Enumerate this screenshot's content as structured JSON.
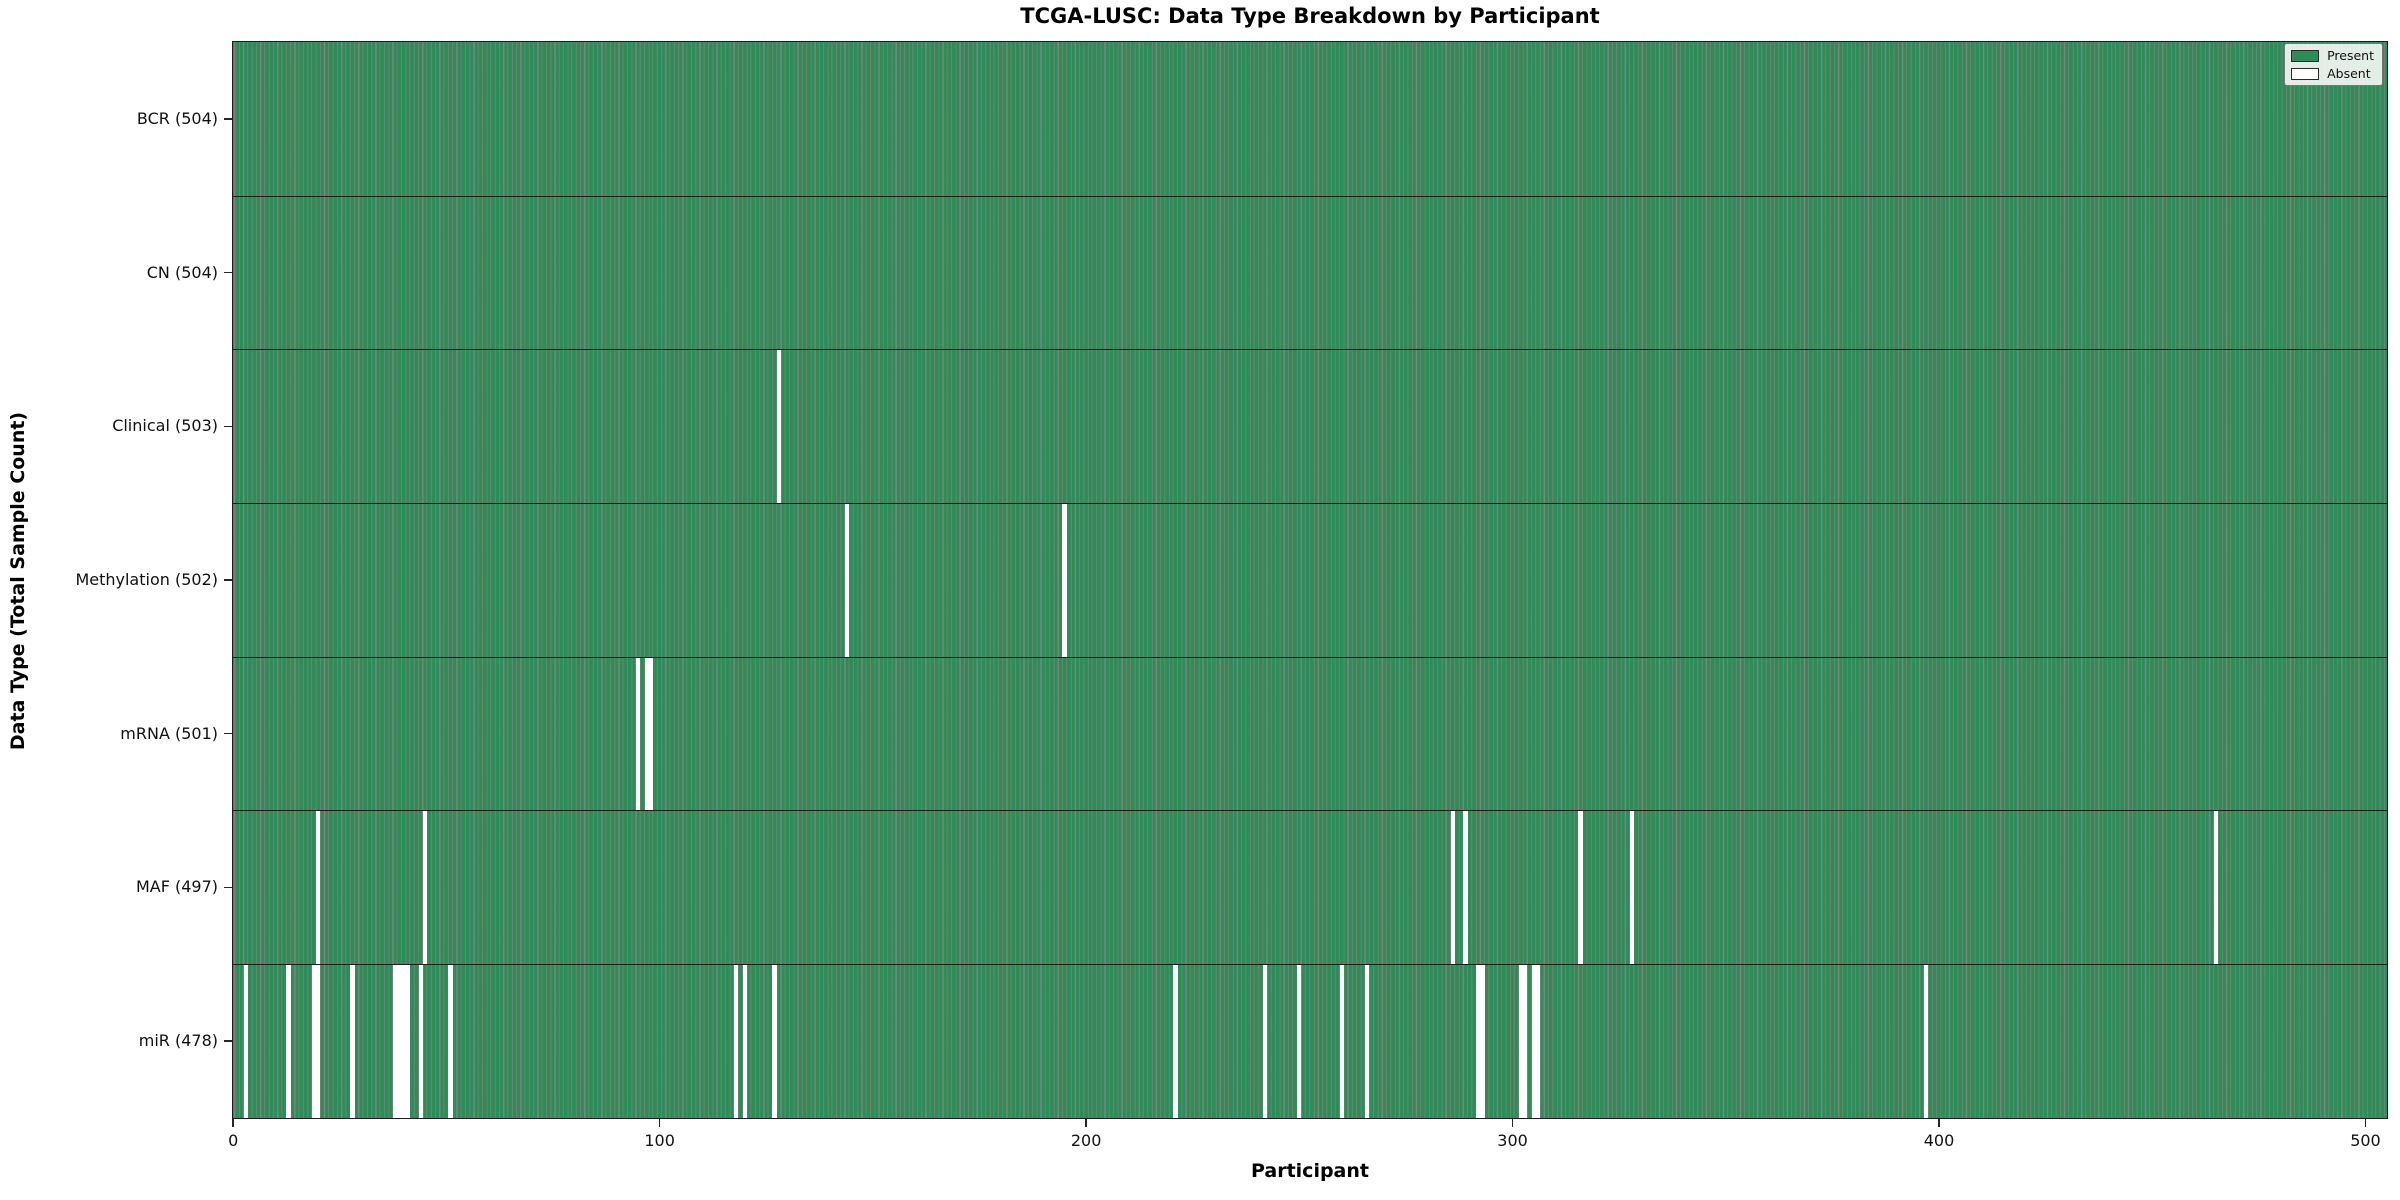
{
  "chart_data": {
    "type": "heatmap",
    "title": "TCGA-LUSC: Data Type Breakdown by Participant",
    "xlabel": "Participant",
    "ylabel": "Data Type (Total Sample Count)",
    "x_ticks": [
      0,
      100,
      200,
      300,
      400,
      500
    ],
    "xlim": [
      0,
      505
    ],
    "n_participants": 504,
    "grid": false,
    "legend_position": "upper right",
    "colors": {
      "present": "#2f8b58",
      "absent": "#ffffff",
      "bar_edge": "#0c3a20",
      "spine": "#1c1c1c"
    },
    "rows": [
      {
        "label": "BCR (504)",
        "data_type": "BCR",
        "total": 504,
        "absent_participants": []
      },
      {
        "label": "CN (504)",
        "data_type": "CN",
        "total": 504,
        "absent_participants": []
      },
      {
        "label": "Clinical (503)",
        "data_type": "Clinical",
        "total": 503,
        "absent_participants": [
          128
        ]
      },
      {
        "label": "Methylation (502)",
        "data_type": "Methylation",
        "total": 502,
        "absent_participants": [
          144,
          195
        ]
      },
      {
        "label": "mRNA (501)",
        "data_type": "mRNA",
        "total": 501,
        "absent_participants": [
          95,
          97,
          98
        ]
      },
      {
        "label": "MAF (497)",
        "data_type": "MAF",
        "total": 497,
        "absent_participants": [
          20,
          45,
          286,
          289,
          316,
          328,
          465
        ]
      },
      {
        "label": "miR (478)",
        "data_type": "miR",
        "total": 478,
        "absent_participants": [
          3,
          13,
          19,
          20,
          28,
          38,
          39,
          40,
          41,
          44,
          51,
          118,
          120,
          127,
          221,
          242,
          250,
          260,
          266,
          292,
          293,
          302,
          303,
          305,
          306,
          397
        ]
      }
    ]
  },
  "legend": {
    "items": [
      {
        "label": "Present",
        "color": "#2f8b58"
      },
      {
        "label": "Absent",
        "color": "#ffffff"
      }
    ]
  }
}
